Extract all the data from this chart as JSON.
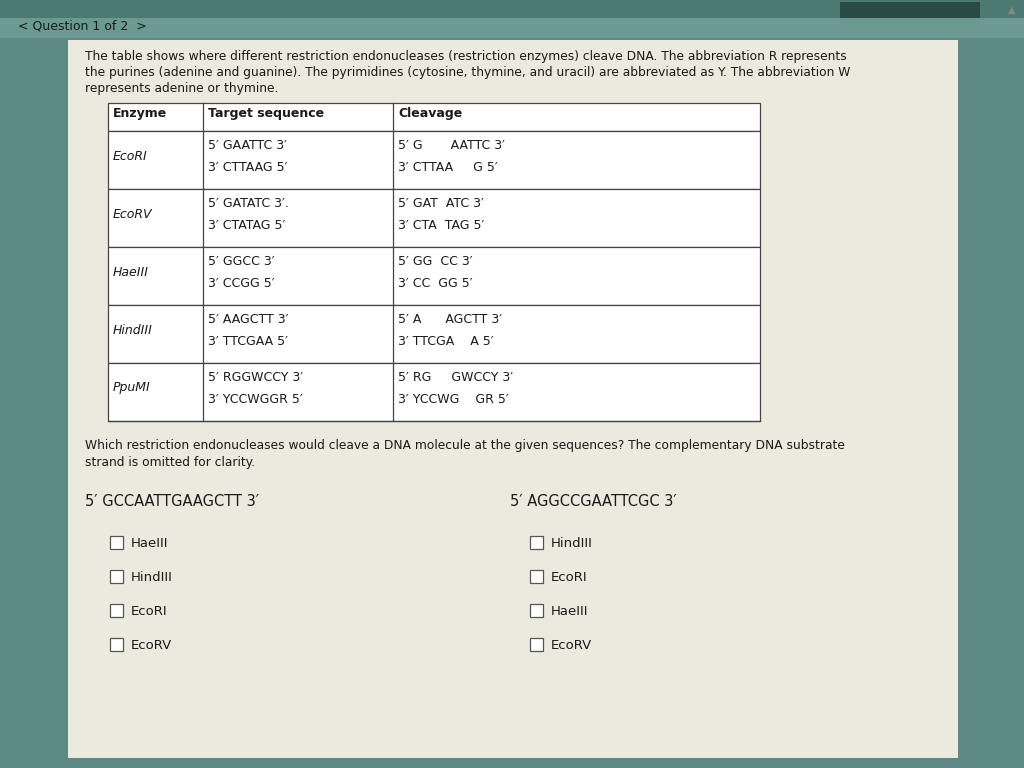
{
  "bg_color": "#5a8a82",
  "card_color": "#f0ede4",
  "nav_bg": "#6a9a92",
  "nav_text": "< Question 1 of 2  >",
  "intro_text_line1": "The table shows where different restriction endonucleases (restriction enzymes) cleave DNA. The abbreviation R represents",
  "intro_text_line2": "the purines (adenine and guanine). The pyrimidines (cytosine, thymine, and uracil) are abbreviated as Y. The abbreviation W",
  "intro_text_line3": "represents adenine or thymine.",
  "table_headers": [
    "Enzyme",
    "Target sequence",
    "Cleavage"
  ],
  "table_rows": [
    {
      "enzyme": "EcoRI",
      "target_line1": "5′ GAATTC 3′",
      "target_line2": "3′ CTTAAG 5′",
      "cleavage_line1": "5′ G       AATTC 3′",
      "cleavage_line2": "3′ CTTAA     G 5′"
    },
    {
      "enzyme": "EcoRV",
      "target_line1": "5′ GATATC 3′.",
      "target_line2": "3′ CTATAG 5′",
      "cleavage_line1": "5′ GAT  ATC 3′",
      "cleavage_line2": "3′ CTA  TAG 5′"
    },
    {
      "enzyme": "HaeIII",
      "target_line1": "5′ GGCC 3′",
      "target_line2": "3′ CCGG 5′",
      "cleavage_line1": "5′ GG  CC 3′",
      "cleavage_line2": "3′ CC  GG 5′"
    },
    {
      "enzyme": "HindIII",
      "target_line1": "5′ AAGCTT 3′",
      "target_line2": "3′ TTCGAA 5′",
      "cleavage_line1": "5′ A      AGCTT 3′",
      "cleavage_line2": "3′ TTCGA    A 5′"
    },
    {
      "enzyme": "PpuMI",
      "target_line1": "5′ RGGWCCY 3′",
      "target_line2": "3′ YCCWGGR 5′",
      "cleavage_line1": "5′ RG     GWCCY 3′",
      "cleavage_line2": "3′ YCCWG    GR 5′"
    }
  ],
  "question_text_line1": "Which restriction endonucleases would cleave a DNA molecule at the given sequences? The complementary DNA substrate",
  "question_text_line2": "strand is omitted for clarity.",
  "seq1_label": "5′ GCCAATTGAAGCTT 3′",
  "seq2_label": "5′ AGGCCGAATTCGC 3′",
  "seq1_checkboxes": [
    "HaeIII",
    "HindIII",
    "EcoRI",
    "EcoRV"
  ],
  "seq2_checkboxes": [
    "HindIII",
    "EcoRI",
    "HaeIII",
    "EcoRV"
  ],
  "text_color": "#1a1a1a",
  "table_border_color": "#444444"
}
